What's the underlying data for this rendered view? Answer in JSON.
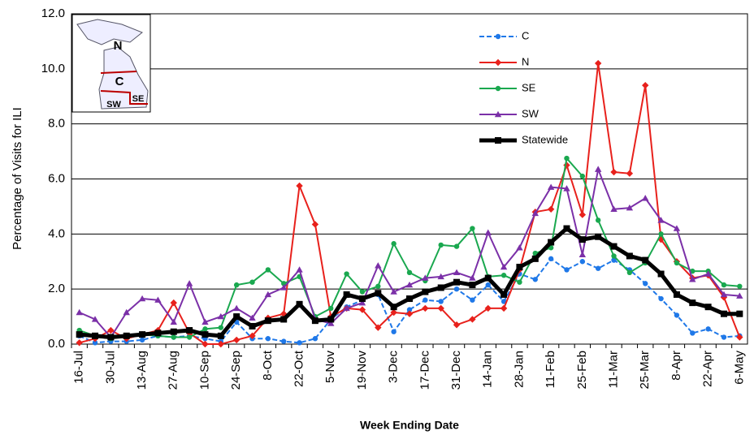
{
  "chart_data": {
    "type": "line",
    "y_label": "Percentage of Visits for ILI",
    "x_label": "Week Ending Date",
    "map_labels": [
      "N",
      "C",
      "SW",
      "SE"
    ],
    "categories": [
      "16-Jul",
      null,
      "30-Jul",
      null,
      "13-Aug",
      null,
      "27-Aug",
      null,
      "10-Sep",
      null,
      "24-Sep",
      null,
      "8-Oct",
      null,
      "22-Oct",
      null,
      "5-Nov",
      null,
      "19-Nov",
      null,
      "3-Dec",
      null,
      "17-Dec",
      null,
      "31-Dec",
      null,
      "14-Jan",
      null,
      "28-Jan",
      null,
      "11-Feb",
      null,
      "25-Feb",
      null,
      "11-Mar",
      null,
      "25-Mar",
      null,
      "8-Apr",
      null,
      "22-Apr",
      null,
      "6-May"
    ],
    "ylim": [
      0,
      12
    ],
    "yticks": [
      {
        "value": 0,
        "label": "0.0"
      },
      {
        "value": 2,
        "label": "2.0"
      },
      {
        "value": 4,
        "label": "4.0"
      },
      {
        "value": 6,
        "label": "6.0"
      },
      {
        "value": 8,
        "label": "8.0"
      },
      {
        "value": 10,
        "label": "10.0"
      },
      {
        "value": 12,
        "label": "12.0"
      }
    ],
    "grid": true,
    "series": [
      {
        "name": "C",
        "color": "#1f78e8",
        "marker": "circle",
        "dash": true,
        "width": 2,
        "values": [
          0.3,
          0.05,
          0.1,
          0.1,
          0.15,
          0.3,
          0.25,
          0.3,
          0.2,
          0.1,
          0.8,
          0.2,
          0.2,
          0.1,
          0.05,
          0.2,
          0.9,
          1.35,
          1.6,
          1.8,
          0.45,
          1.25,
          1.6,
          1.55,
          2.0,
          1.6,
          2.15,
          1.55,
          2.55,
          2.35,
          3.1,
          2.7,
          3.0,
          2.75,
          3.05,
          2.7,
          2.2,
          1.65,
          1.05,
          0.4,
          0.55,
          0.25,
          0.3
        ]
      },
      {
        "name": "N",
        "color": "#e8211c",
        "marker": "diamond",
        "dash": false,
        "width": 2,
        "values": [
          0.05,
          0.2,
          0.5,
          0.2,
          0.35,
          0.5,
          1.5,
          0.4,
          0.0,
          0.0,
          0.15,
          0.3,
          0.95,
          1.1,
          5.75,
          4.35,
          1.0,
          1.3,
          1.25,
          0.6,
          1.15,
          1.1,
          1.3,
          1.3,
          0.7,
          0.9,
          1.3,
          1.3,
          2.7,
          4.8,
          4.9,
          6.5,
          4.7,
          10.2,
          6.25,
          6.2,
          9.4,
          3.8,
          3.0,
          2.4,
          2.5,
          1.7,
          0.25
        ]
      },
      {
        "name": "SE",
        "color": "#1aa84f",
        "marker": "circle",
        "dash": false,
        "width": 2,
        "values": [
          0.5,
          0.3,
          0.2,
          0.3,
          0.35,
          0.3,
          0.25,
          0.25,
          0.55,
          0.6,
          2.15,
          2.25,
          2.7,
          2.2,
          2.45,
          1.0,
          1.3,
          2.55,
          1.9,
          2.1,
          3.65,
          2.6,
          2.3,
          3.6,
          3.55,
          4.2,
          2.45,
          2.5,
          2.25,
          3.3,
          3.5,
          6.75,
          6.1,
          4.5,
          3.2,
          2.6,
          2.95,
          4.0,
          2.95,
          2.65,
          2.65,
          2.15,
          2.1
        ]
      },
      {
        "name": "SW",
        "color": "#7b30a8",
        "marker": "triangle",
        "dash": false,
        "width": 2,
        "values": [
          1.15,
          0.9,
          0.25,
          1.15,
          1.65,
          1.6,
          0.8,
          2.2,
          0.8,
          1.0,
          1.3,
          0.95,
          1.8,
          2.05,
          2.7,
          0.9,
          0.75,
          1.3,
          1.5,
          2.85,
          1.9,
          2.15,
          2.4,
          2.45,
          2.6,
          2.4,
          4.05,
          2.8,
          3.5,
          4.75,
          5.7,
          5.65,
          3.25,
          6.35,
          4.9,
          4.95,
          5.3,
          4.5,
          4.2,
          2.35,
          2.55,
          1.8,
          1.75
        ]
      },
      {
        "name": "Statewide",
        "color": "#000000",
        "marker": "square",
        "dash": false,
        "width": 5,
        "values": [
          0.35,
          0.3,
          0.25,
          0.3,
          0.35,
          0.4,
          0.45,
          0.5,
          0.35,
          0.3,
          1.0,
          0.65,
          0.85,
          0.9,
          1.45,
          0.85,
          0.9,
          1.8,
          1.65,
          1.85,
          1.35,
          1.65,
          1.9,
          2.05,
          2.25,
          2.15,
          2.4,
          1.8,
          2.8,
          3.1,
          3.7,
          4.2,
          3.8,
          3.9,
          3.55,
          3.2,
          3.05,
          2.55,
          1.8,
          1.5,
          1.35,
          1.1,
          1.1
        ]
      }
    ]
  }
}
